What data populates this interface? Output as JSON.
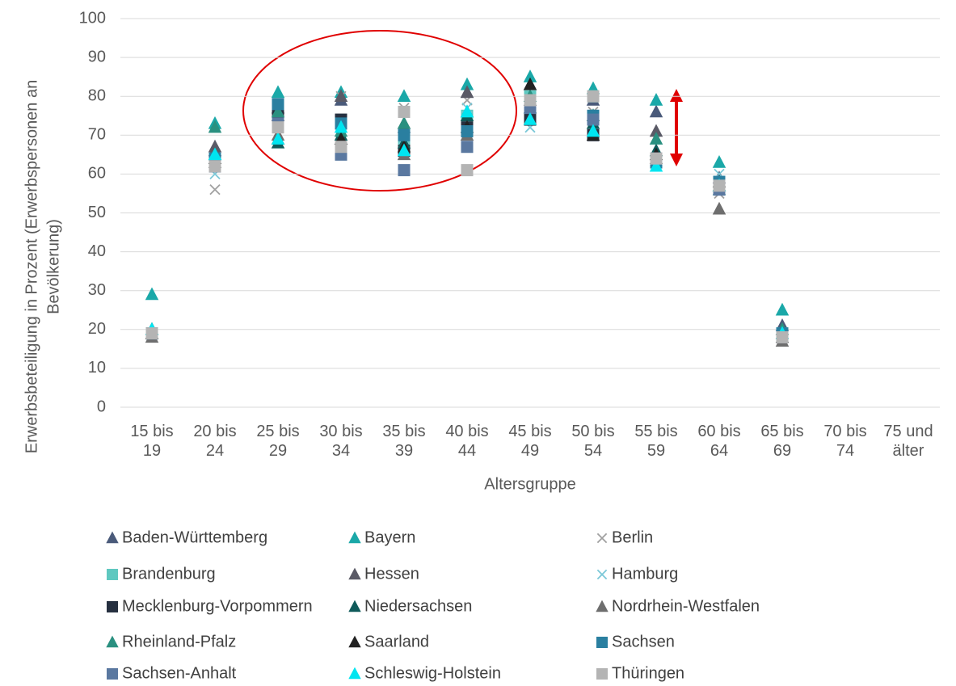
{
  "chart_data": {
    "type": "scatter",
    "x_label": "Altersgruppe",
    "y_label": "Erwerbsbeteiligung in Prozent (Erwerbspersonen an Bevölkerung)",
    "categories": [
      "15 bis 19",
      "20 bis 24",
      "25 bis 29",
      "30 bis 34",
      "35 bis 39",
      "40 bis 44",
      "45 bis 49",
      "50 bis 54",
      "55 bis 59",
      "60 bis 64",
      "65 bis 69",
      "70 bis 74",
      "75 und älter"
    ],
    "ylim": [
      0,
      100
    ],
    "yticks": [
      0,
      10,
      20,
      30,
      40,
      50,
      60,
      70,
      80,
      90,
      100
    ],
    "grid": true,
    "series": [
      {
        "name": "Baden-Württemberg",
        "marker": "triangle",
        "color": "#4a5a7a",
        "values": [
          20,
          66,
          77,
          79,
          72,
          81,
          83,
          79,
          76,
          59,
          21,
          null,
          null
        ]
      },
      {
        "name": "Bayern",
        "marker": "triangle",
        "color": "#1aa8a8",
        "values": [
          29,
          73,
          81,
          81,
          80,
          83,
          85,
          82,
          79,
          63,
          25,
          null,
          null
        ]
      },
      {
        "name": "Berlin",
        "marker": "x",
        "color": "#a0a0a0",
        "values": [
          19,
          56,
          74,
          80,
          77,
          79,
          76,
          76,
          64,
          55,
          19,
          null,
          null
        ]
      },
      {
        "name": "Brandenburg",
        "marker": "square",
        "color": "#5fc8c0",
        "values": [
          19,
          63,
          77,
          73,
          69,
          75,
          80,
          80,
          63,
          57,
          19,
          null,
          null
        ]
      },
      {
        "name": "Hessen",
        "marker": "triangle",
        "color": "#5a5a66",
        "values": [
          20,
          67,
          75,
          80,
          73,
          81,
          79,
          75,
          71,
          57,
          20,
          null,
          null
        ]
      },
      {
        "name": "Hamburg",
        "marker": "x",
        "color": "#7cc8d8",
        "values": [
          19,
          60,
          72,
          74,
          69,
          77,
          72,
          72,
          63,
          60,
          19,
          null,
          null
        ]
      },
      {
        "name": "Mecklenburg-Vorpommern",
        "marker": "square",
        "color": "#263040",
        "values": [
          19,
          62,
          76,
          74,
          66,
          72,
          74,
          70,
          63,
          57,
          18,
          null,
          null
        ]
      },
      {
        "name": "Niedersachsen",
        "marker": "triangle",
        "color": "#0f5a5a",
        "values": [
          19,
          65,
          68,
          70,
          68,
          75,
          77,
          73,
          66,
          57,
          19,
          null,
          null
        ]
      },
      {
        "name": "Nordrhein-Westfalen",
        "marker": "triangle",
        "color": "#6e6e6e",
        "values": [
          18,
          63,
          70,
          69,
          65,
          70,
          74,
          71,
          64,
          51,
          17,
          null,
          null
        ]
      },
      {
        "name": "Rheinland-Pfalz",
        "marker": "triangle",
        "color": "#2a9080",
        "values": [
          20,
          72,
          76,
          71,
          73,
          76,
          80,
          75,
          69,
          56,
          20,
          null,
          null
        ]
      },
      {
        "name": "Saarland",
        "marker": "triangle",
        "color": "#222222",
        "values": [
          19,
          64,
          69,
          69,
          67,
          72,
          83,
          70,
          65,
          58,
          18,
          null,
          null
        ]
      },
      {
        "name": "Sachsen",
        "marker": "square",
        "color": "#2a7fa0",
        "values": [
          19,
          64,
          78,
          73,
          70,
          71,
          78,
          75,
          63,
          58,
          19,
          null,
          null
        ]
      },
      {
        "name": "Sachsen-Anhalt",
        "marker": "square",
        "color": "#5a78a0",
        "values": [
          19,
          62,
          73,
          65,
          61,
          67,
          77,
          74,
          64,
          56,
          18,
          null,
          null
        ]
      },
      {
        "name": "Schleswig-Holstein",
        "marker": "triangle",
        "color": "#00e5f0",
        "values": [
          20,
          65,
          69,
          72,
          66,
          76,
          74,
          71,
          62,
          57,
          19,
          null,
          null
        ]
      },
      {
        "name": "Thüringen",
        "marker": "square",
        "color": "#b4b4b4",
        "values": [
          19,
          62,
          72,
          67,
          76,
          61,
          79,
          80,
          64,
          57,
          18,
          null,
          null
        ]
      }
    ]
  }
}
